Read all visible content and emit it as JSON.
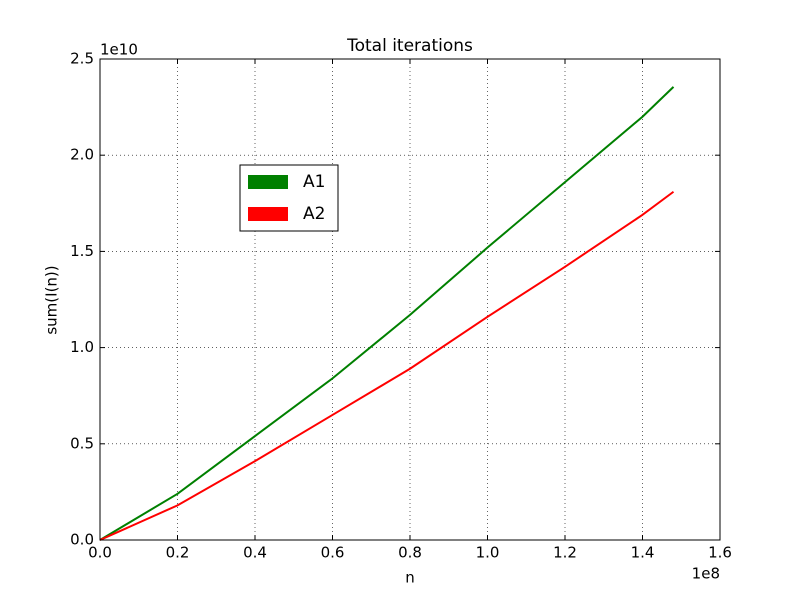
{
  "chart_data": {
    "type": "line",
    "title": "Total iterations",
    "xlabel": "n",
    "ylabel": "sum(I(n))",
    "x_offset_label": "1e8",
    "y_offset_label": "1e10",
    "x": [
      0,
      20000000,
      40000000,
      60000000,
      80000000,
      100000000,
      120000000,
      140000000,
      148000000
    ],
    "series": [
      {
        "name": "A1",
        "color": "#008000",
        "values": [
          0,
          2400000000,
          5400000000,
          8400000000,
          11700000000,
          15200000000,
          18600000000,
          22000000000,
          23550000000
        ]
      },
      {
        "name": "A2",
        "color": "#ff0000",
        "values": [
          0,
          1800000000,
          4100000000,
          6500000000,
          8900000000,
          11600000000,
          14200000000,
          16900000000,
          18100000000
        ]
      }
    ],
    "xlim": [
      0,
      160000000
    ],
    "xticks": [
      {
        "value": 0,
        "label": "0.0"
      },
      {
        "value": 20000000,
        "label": "0.2"
      },
      {
        "value": 40000000,
        "label": "0.4"
      },
      {
        "value": 60000000,
        "label": "0.6"
      },
      {
        "value": 80000000,
        "label": "0.8"
      },
      {
        "value": 100000000,
        "label": "1.0"
      },
      {
        "value": 120000000,
        "label": "1.2"
      },
      {
        "value": 140000000,
        "label": "1.4"
      },
      {
        "value": 160000000,
        "label": "1.6"
      }
    ],
    "ylim": [
      0,
      25000000000
    ],
    "yticks": [
      {
        "value": 0,
        "label": "0.0"
      },
      {
        "value": 5000000000,
        "label": "0.5"
      },
      {
        "value": 10000000000,
        "label": "1.0"
      },
      {
        "value": 15000000000,
        "label": "1.5"
      },
      {
        "value": 20000000000,
        "label": "2.0"
      },
      {
        "value": 25000000000,
        "label": "2.5"
      }
    ],
    "grid": true
  }
}
